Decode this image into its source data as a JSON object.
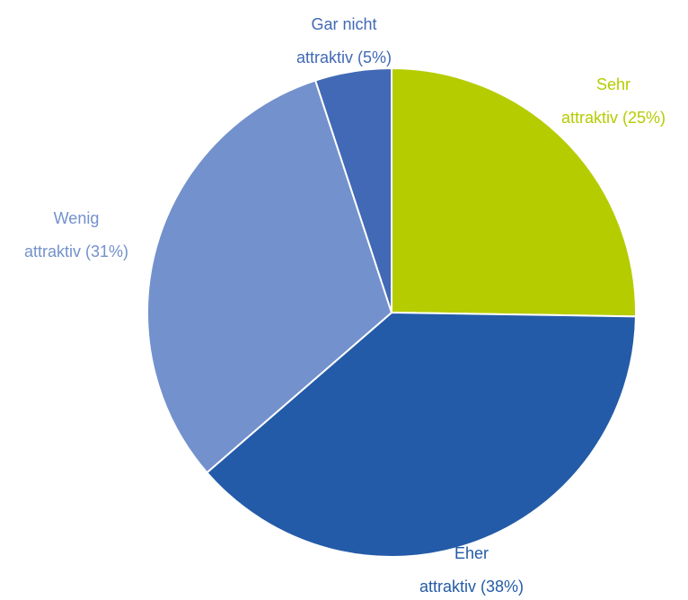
{
  "chart_data": {
    "type": "pie",
    "categories": [
      [
        "Sehr",
        "attraktiv (25%)"
      ],
      [
        "Eher",
        "attraktiv (38%)"
      ],
      [
        "Wenig",
        "attraktiv (31%)"
      ],
      [
        "Gar nicht",
        "attraktiv (5%)"
      ]
    ],
    "values": [
      25,
      38,
      31,
      5
    ],
    "colors": [
      "#b5cc00",
      "#235ba8",
      "#7391cc",
      "#4169b5"
    ]
  }
}
